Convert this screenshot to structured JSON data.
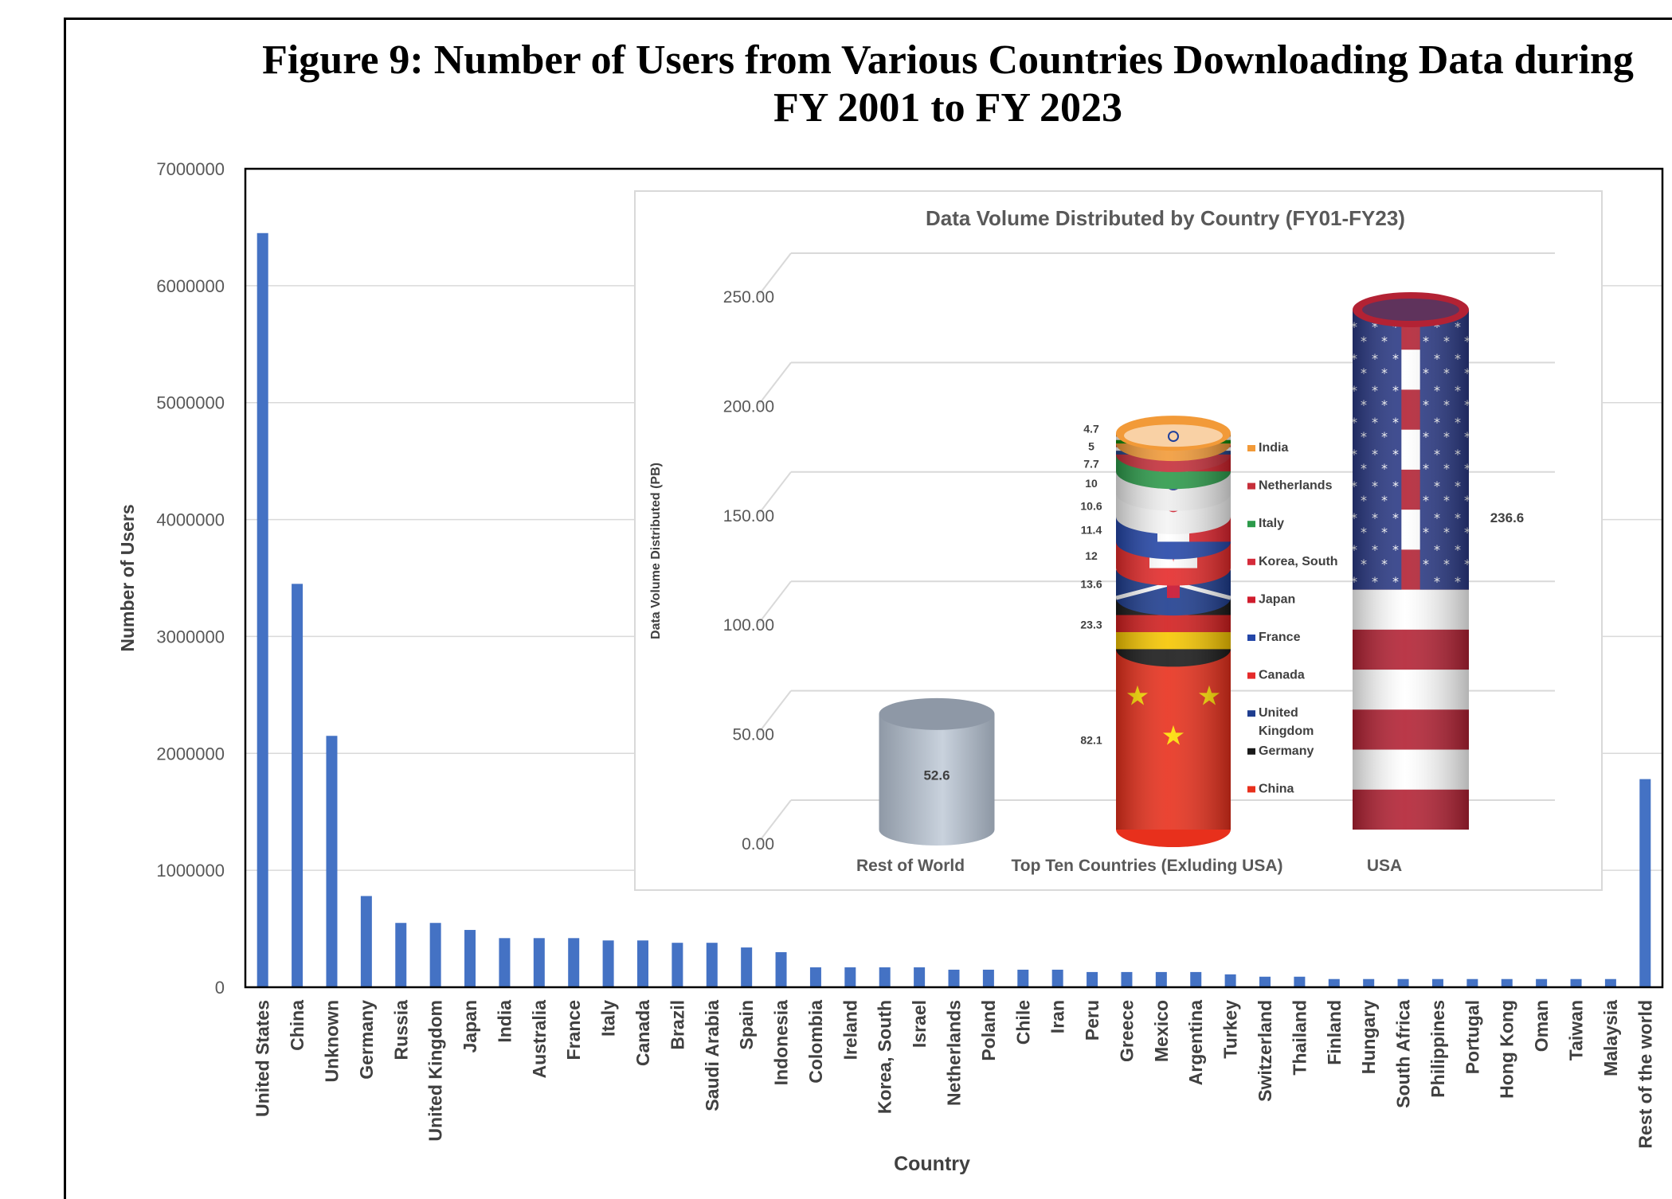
{
  "figure_title": "Figure 9: Number of Users from Various Countries Downloading Data during FY 2001 to FY 2023",
  "chart_data": [
    {
      "type": "bar",
      "title": "",
      "xlabel": "Country",
      "ylabel": "Number of Users",
      "ylim": [
        0,
        7000000
      ],
      "yticks": [
        "0",
        "1000000",
        "2000000",
        "3000000",
        "4000000",
        "5000000",
        "6000000",
        "7000000"
      ],
      "grid": true,
      "bar_color": "#4472C4",
      "categories": [
        "United States",
        "China",
        "Unknown",
        "Germany",
        "Russia",
        "United Kingdom",
        "Japan",
        "India",
        "Australia",
        "France",
        "Italy",
        "Canada",
        "Brazil",
        "Saudi Arabia",
        "Spain",
        "Indonesia",
        "Colombia",
        "Ireland",
        "Korea, South",
        "Israel",
        "Netherlands",
        "Poland",
        "Chile",
        "Iran",
        "Peru",
        "Greece",
        "Mexico",
        "Argentina",
        "Turkey",
        "Switzerland",
        "Thailand",
        "Finland",
        "Hungary",
        "South Africa",
        "Philippines",
        "Portugal",
        "Hong Kong",
        "Oman",
        "Taiwan",
        "Malaysia",
        "Rest of the world"
      ],
      "values": [
        6450000,
        3450000,
        2150000,
        780000,
        550000,
        550000,
        490000,
        420000,
        420000,
        420000,
        400000,
        400000,
        380000,
        380000,
        340000,
        300000,
        170000,
        170000,
        170000,
        170000,
        150000,
        150000,
        150000,
        150000,
        130000,
        130000,
        130000,
        130000,
        110000,
        90000,
        90000,
        70000,
        70000,
        70000,
        70000,
        70000,
        70000,
        70000,
        70000,
        70000,
        1780000
      ]
    },
    {
      "type": "bar",
      "subtype": "stacked-3d-cylinder",
      "title": "Data Volume Distributed by Country (FY01-FY23)",
      "xlabel": "",
      "ylabel": "Data Volume Distributed (PB)",
      "ylim": [
        0,
        250
      ],
      "yticks": [
        "0.00",
        "50.00",
        "100.00",
        "150.00",
        "200.00",
        "250.00"
      ],
      "grid": true,
      "legend_position": "right of middle column",
      "categories": [
        "Rest of World",
        "Top Ten Countries (Exluding USA)",
        "USA"
      ],
      "series": [
        {
          "name": "China",
          "values": [
            null,
            82.1,
            null
          ],
          "color": "#E8301C"
        },
        {
          "name": "Germany",
          "values": [
            null,
            23.3,
            null
          ],
          "color": "#1A1A1A"
        },
        {
          "name": "United Kingdom",
          "values": [
            null,
            13.6,
            null
          ],
          "color": "#1E3D8F"
        },
        {
          "name": "Canada",
          "values": [
            null,
            12.0,
            null
          ],
          "color": "#E52A2A"
        },
        {
          "name": "France",
          "values": [
            null,
            11.4,
            null
          ],
          "color": "#2446A8"
        },
        {
          "name": "Japan",
          "values": [
            null,
            10.6,
            null
          ],
          "color": "#F4F4F4"
        },
        {
          "name": "Korea, South",
          "values": [
            null,
            10.0,
            null
          ],
          "color": "#EDEDED"
        },
        {
          "name": "Italy",
          "values": [
            null,
            7.7,
            null
          ],
          "color": "#2C9A4A"
        },
        {
          "name": "Netherlands",
          "values": [
            null,
            5.0,
            null
          ],
          "color": "#C62F3A"
        },
        {
          "name": "India",
          "values": [
            null,
            4.7,
            null
          ],
          "color": "#F29A38"
        }
      ],
      "single_values": [
        {
          "category": "Rest of World",
          "value": 52.6,
          "color": "#A9B4C2"
        },
        {
          "category": "USA",
          "value": 236.6,
          "color": "#B32234"
        }
      ],
      "value_labels": [
        "52.6",
        "82.1",
        "23.3",
        "13.6",
        "12.0",
        "11.4",
        "10.6",
        "10.0",
        "7.7",
        "5.0",
        "4.7",
        "236.6"
      ],
      "legend": [
        {
          "label": "India",
          "color": "#F29A38"
        },
        {
          "label": "Netherlands",
          "color": "#C62F3A"
        },
        {
          "label": "Italy",
          "color": "#2C9A4A"
        },
        {
          "label": "Korea, South",
          "color": "#D52B3A"
        },
        {
          "label": "Japan",
          "color": "#D01C2C"
        },
        {
          "label": "France",
          "color": "#2446A8"
        },
        {
          "label": "Canada",
          "color": "#E52A2A"
        },
        {
          "label": "United Kingdom",
          "color": "#1E3D8F"
        },
        {
          "label": "Germany",
          "color": "#1A1A1A"
        },
        {
          "label": "China",
          "color": "#E8301C"
        }
      ]
    }
  ]
}
